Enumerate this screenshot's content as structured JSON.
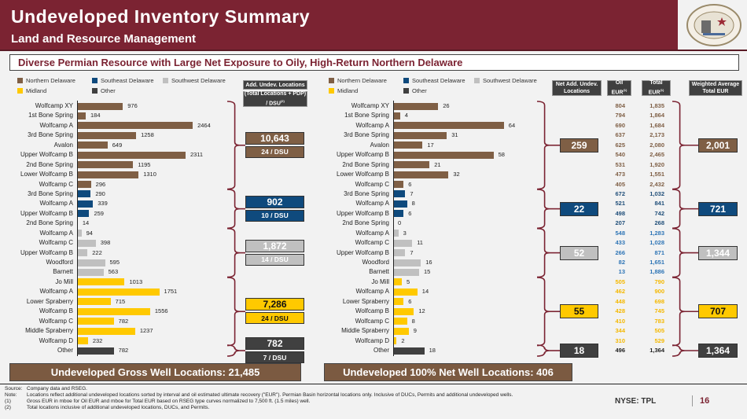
{
  "header": {
    "title": "Undeveloped Inventory Summary",
    "subtitle": "Land and Resource Management",
    "logo_text": "TEXAS PACIFIC LAND TRUST"
  },
  "tagline": "Diverse Permian Resource with Large Net Exposure to Oily, High-Return Northern Delaware",
  "legend": [
    {
      "name": "Northern Delaware",
      "color": "#7f5f45"
    },
    {
      "name": "Southeast Delaware",
      "color": "#0f4a7d"
    },
    {
      "name": "Southwest Delaware",
      "color": "#c0c0c0"
    },
    {
      "name": "Midland",
      "color": "#ffc900"
    },
    {
      "name": "Other",
      "color": "#404040"
    }
  ],
  "column_headers": {
    "add_undev": "Add. Undev. Locations",
    "total_per_dsu": "(Total Locations + PDP) / DSU",
    "total_per_dsu_sup": "(2)",
    "net_add": "Net Add. Undev. Locations",
    "oil_eur": "Oil EUR",
    "total_eur": "Total EUR",
    "eur_sup": "(1)",
    "weighted": "Weighted Average Total EUR"
  },
  "groups": [
    {
      "name": "Northern Delaware",
      "color": "#7f5f45",
      "eur_color": "#7f5f45",
      "text_color": "#fff",
      "total": "10,643",
      "per_dsu": "24 / DSU",
      "net": "259",
      "weighted_eur": "2,001",
      "rows": [
        {
          "label": "Wolfcamp XY",
          "gross": 976,
          "net": 26,
          "oil": "804",
          "total": "1,835"
        },
        {
          "label": "1st Bone Spring",
          "gross": 184,
          "net": 4,
          "oil": "794",
          "total": "1,864"
        },
        {
          "label": "Wolfcamp A",
          "gross": 2464,
          "net": 64,
          "oil": "690",
          "total": "1,684"
        },
        {
          "label": "3rd Bone Spring",
          "gross": 1258,
          "net": 31,
          "oil": "637",
          "total": "2,173"
        },
        {
          "label": "Avalon",
          "gross": 649,
          "net": 17,
          "oil": "625",
          "total": "2,080"
        },
        {
          "label": "Upper Wolfcamp B",
          "gross": 2311,
          "net": 58,
          "oil": "540",
          "total": "2,465"
        },
        {
          "label": "2nd Bone Spring",
          "gross": 1195,
          "net": 21,
          "oil": "531",
          "total": "1,920"
        },
        {
          "label": "Lower Wolfcamp B",
          "gross": 1310,
          "net": 32,
          "oil": "473",
          "total": "1,551"
        },
        {
          "label": "Wolfcamp C",
          "gross": 296,
          "net": 6,
          "oil": "405",
          "total": "2,432"
        }
      ]
    },
    {
      "name": "Southeast Delaware",
      "color": "#0f4a7d",
      "eur_color": "#1f4e79",
      "text_color": "#fff",
      "total": "902",
      "per_dsu": "10 / DSU",
      "net": "22",
      "weighted_eur": "721",
      "rows": [
        {
          "label": "3rd Bone Spring",
          "gross": 290,
          "net": 7,
          "oil": "672",
          "total": "1,032"
        },
        {
          "label": "Wolfcamp A",
          "gross": 339,
          "net": 8,
          "oil": "521",
          "total": "841"
        },
        {
          "label": "Upper Wolfcamp B",
          "gross": 259,
          "net": 6,
          "oil": "498",
          "total": "742"
        },
        {
          "label": "2nd Bone Spring",
          "gross": 14,
          "net": 0,
          "oil": "207",
          "total": "268"
        }
      ]
    },
    {
      "name": "Southwest Delaware",
      "color": "#c0c0c0",
      "eur_color": "#2e75b6",
      "text_color": "#fff",
      "total": "1,872",
      "per_dsu": "14 / DSU",
      "net": "52",
      "weighted_eur": "1,344",
      "rows": [
        {
          "label": "Wolfcamp A",
          "gross": 94,
          "net": 3,
          "oil": "548",
          "total": "1,283"
        },
        {
          "label": "Wolfcamp C",
          "gross": 398,
          "net": 11,
          "oil": "433",
          "total": "1,028"
        },
        {
          "label": "Upper Wolfcamp B",
          "gross": 222,
          "net": 7,
          "oil": "266",
          "total": "871"
        },
        {
          "label": "Woodford",
          "gross": 595,
          "net": 16,
          "oil": "82",
          "total": "1,651"
        },
        {
          "label": "Barnett",
          "gross": 563,
          "net": 15,
          "oil": "13",
          "total": "1,886"
        }
      ]
    },
    {
      "name": "Midland",
      "color": "#ffc900",
      "eur_color": "#f5b800",
      "text_color": "#111",
      "total": "7,286",
      "per_dsu": "24 / DSU",
      "net": "55",
      "weighted_eur": "707",
      "rows": [
        {
          "label": "Jo Mill",
          "gross": 1013,
          "net": 5,
          "oil": "505",
          "total": "790"
        },
        {
          "label": "Wolfcamp A",
          "gross": 1751,
          "net": 14,
          "oil": "462",
          "total": "900"
        },
        {
          "label": "Lower Spraberry",
          "gross": 715,
          "net": 6,
          "oil": "448",
          "total": "698"
        },
        {
          "label": "Wolfcamp B",
          "gross": 1556,
          "net": 12,
          "oil": "428",
          "total": "745"
        },
        {
          "label": "Wolfcamp C",
          "gross": 782,
          "net": 8,
          "oil": "410",
          "total": "783"
        },
        {
          "label": "Middle Spraberry",
          "gross": 1237,
          "net": 9,
          "oil": "344",
          "total": "505"
        },
        {
          "label": "Wolfcamp D",
          "gross": 232,
          "net": 2,
          "oil": "310",
          "total": "529"
        }
      ]
    },
    {
      "name": "Other",
      "color": "#404040",
      "eur_color": "#222",
      "text_color": "#fff",
      "total": "782",
      "per_dsu": "7 / DSU",
      "net": "18",
      "weighted_eur": "1,364",
      "rows": [
        {
          "label": "Other",
          "gross": 782,
          "net": 18,
          "oil": "496",
          "total": "1,364"
        }
      ]
    }
  ],
  "banners": {
    "gross": "Undeveloped Gross Well Locations: 21,485",
    "net": "Undeveloped 100% Net Well Locations: 406"
  },
  "footnotes": [
    {
      "key": "Source:",
      "text": "Company data and RSEG."
    },
    {
      "key": "Note:",
      "text": "Locations reflect additional undeveloped locations sorted by interval and oil estimated ultimate recovery (\"EUR\"). Permian Basin horizontal locations only. Inclusive of DUCs, Permits and additional undeveloped wells."
    },
    {
      "key": "(1)",
      "text": "Gross EUR in mboe for Oil EUR and mboe for Total EUR based on RSEG type curves normalized to 7,500 ft. (1.5 miles) well."
    },
    {
      "key": "(2)",
      "text": "Total locations inclusive of additional undeveloped locations, DUCs, and Permits."
    }
  ],
  "ticker": "NYSE: TPL",
  "page_number": "16"
}
